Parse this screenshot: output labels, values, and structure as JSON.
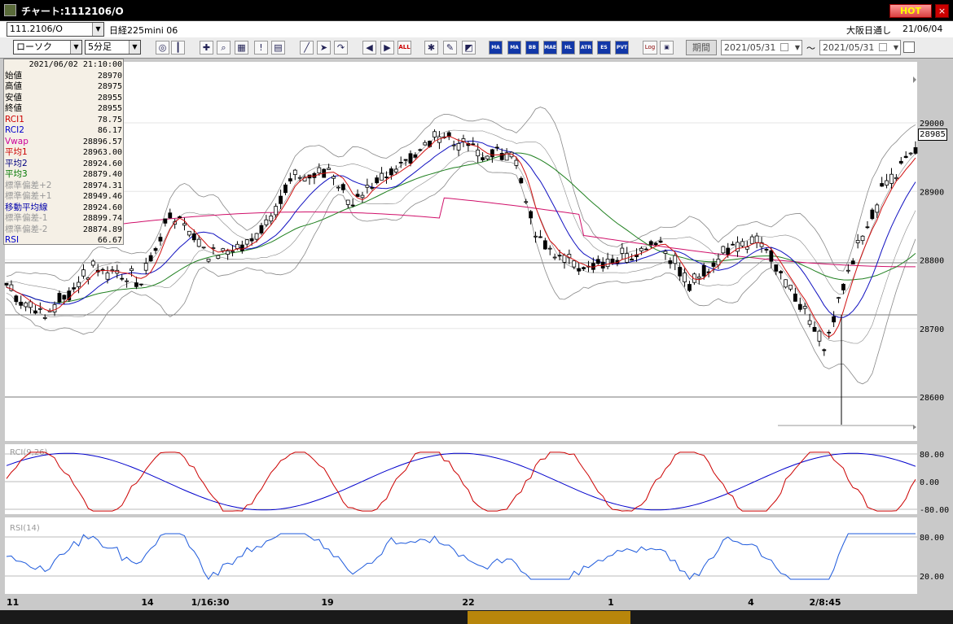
{
  "window": {
    "title": "チャート:1112106/O",
    "hot_label": "HOT",
    "close_label": "×"
  },
  "symbol": {
    "code": "111.2106/O",
    "name": "日経225mini 06",
    "session": "大阪日通し",
    "date": "21/06/04"
  },
  "toolbar": {
    "chart_type": "ローソク",
    "interval": "5分足",
    "period_label": "期間",
    "date_from": "2021/05/31",
    "date_to": "2021/05/31",
    "separator": "〜",
    "icons": [
      "zoom-icon",
      "bar-icon",
      "mark-icon",
      "search-chart-icon",
      "grid-icon",
      "alert-icon",
      "doc-icon",
      "draw-icon",
      "pointer-icon",
      "redo-icon",
      "left-icon",
      "right-icon",
      "all-icon",
      "settings-icon",
      "tool-icon",
      "color-icon"
    ],
    "indicator_buttons": [
      "MA",
      "MA",
      "BB",
      "MAE",
      "HL",
      "ATR",
      "ES",
      "PVT"
    ],
    "all_label": "ALL",
    "log_label": "Log"
  },
  "info": {
    "datetime": "2021/06/02 21:10:00",
    "rows": [
      {
        "k": "始値",
        "v": "28970",
        "c": "#000000"
      },
      {
        "k": "高値",
        "v": "28975",
        "c": "#000000"
      },
      {
        "k": "安値",
        "v": "28955",
        "c": "#000000"
      },
      {
        "k": "終値",
        "v": "28955",
        "c": "#000000"
      },
      {
        "k": "RCI1",
        "v": "78.75",
        "c": "#cc0000"
      },
      {
        "k": "RCI2",
        "v": "86.17",
        "c": "#0000cc"
      },
      {
        "k": "Vwap",
        "v": "28896.57",
        "c": "#cc0099"
      },
      {
        "k": "平均1",
        "v": "28963.00",
        "c": "#cc0000"
      },
      {
        "k": "平均2",
        "v": "28924.60",
        "c": "#000080"
      },
      {
        "k": "平均3",
        "v": "28879.40",
        "c": "#007700"
      },
      {
        "k": "標準偏差+2",
        "v": "28974.31",
        "c": "#999999"
      },
      {
        "k": "標準偏差+1",
        "v": "28949.46",
        "c": "#999999"
      },
      {
        "k": "移動平均線",
        "v": "28924.60",
        "c": "#0000aa"
      },
      {
        "k": "標準偏差-1",
        "v": "28899.74",
        "c": "#999999"
      },
      {
        "k": "標準偏差-2",
        "v": "28874.89",
        "c": "#999999"
      },
      {
        "k": "RSI",
        "v": "66.67",
        "c": "#0000cc"
      }
    ]
  },
  "price_axis": {
    "labels": [
      "29000",
      "28900",
      "28800",
      "28700",
      "28600"
    ],
    "current": "28985"
  },
  "rci_panel": {
    "label": "RCI(9,26)",
    "labels": [
      "80.00",
      "0.00",
      "-80.00"
    ]
  },
  "rsi_panel": {
    "label": "RSI(14)",
    "labels": [
      "80.00",
      "20.00"
    ]
  },
  "time_axis": {
    "labels": [
      "11",
      "14",
      "1/16:30",
      "19",
      "22",
      "1",
      "4",
      "2/8:45"
    ]
  },
  "colors": {
    "ma1": "#d01010",
    "ma2": "#1010c0",
    "ma3": "#208020",
    "vwap": "#d0106a",
    "band": "#888888",
    "rci1": "#cc0000",
    "rci2": "#0000cc",
    "rsi": "#1e5adc"
  }
}
